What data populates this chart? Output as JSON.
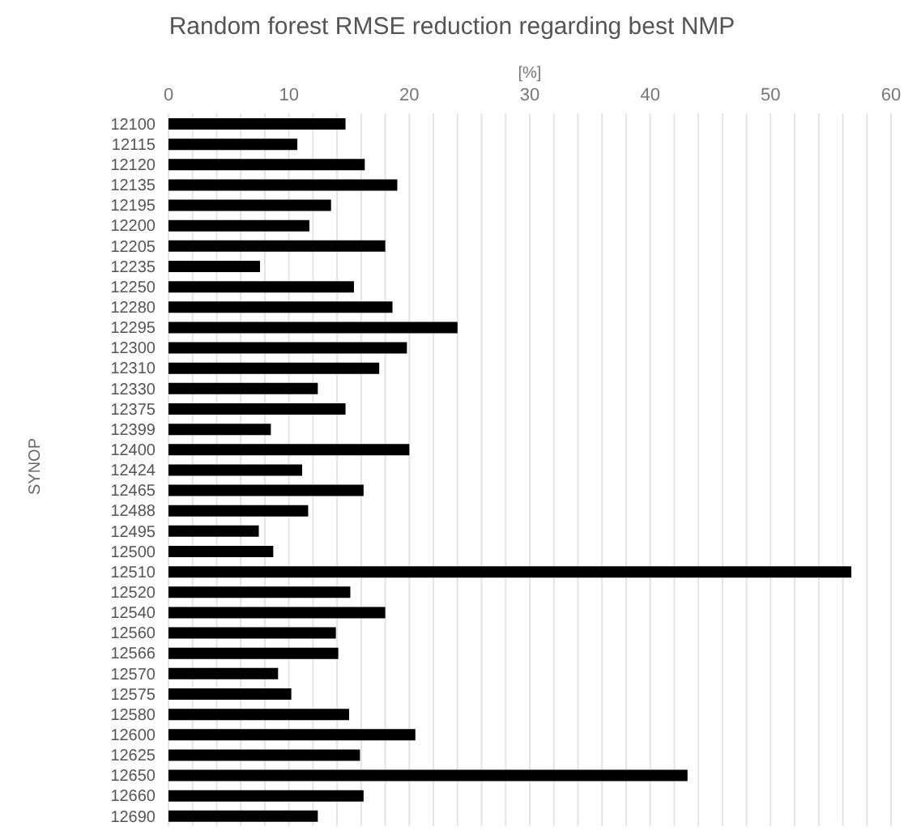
{
  "chart_data": {
    "type": "bar",
    "orientation": "horizontal",
    "title": "Random forest RMSE reduction regarding best NMP",
    "xlabel": "[%]",
    "ylabel": "SYNOP",
    "categories": [
      "12100",
      "12115",
      "12120",
      "12135",
      "12195",
      "12200",
      "12205",
      "12235",
      "12250",
      "12280",
      "12295",
      "12300",
      "12310",
      "12330",
      "12375",
      "12399",
      "12400",
      "12424",
      "12465",
      "12488",
      "12495",
      "12500",
      "12510",
      "12520",
      "12540",
      "12560",
      "12566",
      "12570",
      "12575",
      "12580",
      "12600",
      "12625",
      "12650",
      "12660",
      "12690"
    ],
    "values": [
      14.7,
      10.7,
      16.3,
      19.0,
      13.5,
      11.7,
      18.0,
      7.6,
      15.4,
      18.6,
      24.0,
      19.8,
      17.5,
      12.4,
      14.7,
      8.5,
      20.0,
      11.1,
      16.2,
      11.6,
      7.5,
      8.7,
      56.7,
      15.1,
      18.0,
      13.9,
      14.1,
      9.1,
      10.2,
      15.0,
      20.5,
      15.9,
      43.1,
      16.2,
      12.4
    ],
    "color": "#000000",
    "xlim": [
      0,
      60
    ],
    "xticks": [
      0,
      {
        "value": 2,
        "label": null
      },
      {
        "value": 4,
        "label": null
      },
      {
        "value": 6,
        "label": null
      },
      {
        "value": 8,
        "label": null
      },
      10,
      {
        "value": 12,
        "label": null
      },
      {
        "value": 14,
        "label": null
      },
      {
        "value": 16,
        "label": null
      },
      {
        "value": 18,
        "label": null
      },
      20,
      {
        "value": 22,
        "label": null
      },
      {
        "value": 24,
        "label": null
      },
      {
        "value": 26,
        "label": null
      },
      {
        "value": 28,
        "label": null
      },
      30,
      {
        "value": 32,
        "label": null
      },
      {
        "value": 34,
        "label": null
      },
      {
        "value": 36,
        "label": null
      },
      {
        "value": 38,
        "label": null
      },
      40,
      {
        "value": 42,
        "label": null
      },
      {
        "value": 44,
        "label": null
      },
      {
        "value": 46,
        "label": null
      },
      {
        "value": 48,
        "label": null
      },
      50,
      {
        "value": 52,
        "label": null
      },
      {
        "value": 54,
        "label": null
      },
      {
        "value": 56,
        "label": null
      },
      {
        "value": 58,
        "label": null
      },
      60
    ],
    "grid": "x"
  }
}
